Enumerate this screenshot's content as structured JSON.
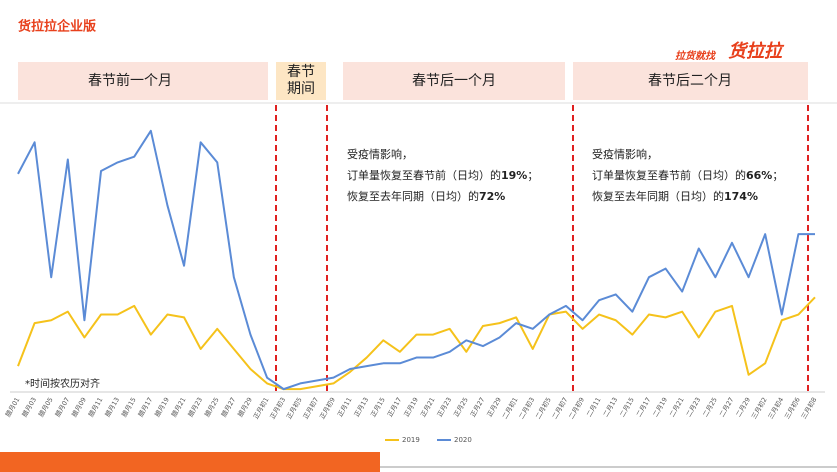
{
  "header": {
    "title": "货拉拉企业版",
    "logo_small": "拉货就找",
    "logo_big": "货拉拉"
  },
  "sections": [
    "春节前一个月",
    "春节期间",
    "春节后一个月",
    "春节后二个月"
  ],
  "annotations": [
    [
      "受疫情影响，",
      [
        "订单量恢复至春节前（日均）的",
        "19%",
        "；"
      ],
      [
        "恢复至去年同期（日均）的",
        "72%",
        ""
      ]
    ],
    [
      "受疫情影响，",
      [
        "订单量恢复至春节前（日均）的",
        "66%",
        "；"
      ],
      [
        "恢复至去年同期（日均）的",
        "174%",
        ""
      ]
    ]
  ],
  "note": "*时间按农历对齐",
  "chart_data": {
    "type": "line",
    "categories": [
      "腊月01",
      "腊月03",
      "腊月05",
      "腊月07",
      "腊月09",
      "腊月11",
      "腊月13",
      "腊月15",
      "腊月17",
      "腊月19",
      "腊月21",
      "腊月23",
      "腊月25",
      "腊月27",
      "腊月29",
      "正月初1",
      "正月初3",
      "正月初5",
      "正月初7",
      "正月初9",
      "正月11",
      "正月13",
      "正月15",
      "正月17",
      "正月19",
      "正月21",
      "正月23",
      "正月25",
      "正月27",
      "正月29",
      "二月初1",
      "二月初3",
      "二月初5",
      "二月初7",
      "二月初9",
      "二月11",
      "二月13",
      "二月15",
      "二月17",
      "二月19",
      "二月21",
      "二月23",
      "二月25",
      "二月27",
      "二月29",
      "三月初2",
      "三月初4",
      "三月初6",
      "三月初8"
    ],
    "ylim": [
      0,
      100
    ],
    "series": [
      {
        "name": "2019",
        "color": "#f5c21b",
        "values": [
          9,
          24,
          25,
          28,
          19,
          27,
          27,
          30,
          20,
          27,
          26,
          15,
          22,
          15,
          8,
          3,
          1,
          1,
          2,
          3,
          7,
          12,
          18,
          14,
          20,
          20,
          22,
          14,
          23,
          24,
          26,
          15,
          27,
          28,
          22,
          27,
          25,
          20,
          27,
          26,
          28,
          19,
          28,
          30,
          6,
          10,
          25,
          27,
          33
        ]
      },
      {
        "name": "2020",
        "color": "#5b8bd6",
        "values": [
          76,
          87,
          40,
          81,
          25,
          77,
          80,
          82,
          91,
          65,
          44,
          87,
          80,
          40,
          20,
          5,
          1,
          3,
          4,
          5,
          8,
          9,
          10,
          10,
          12,
          12,
          14,
          18,
          16,
          19,
          24,
          22,
          27,
          30,
          25,
          32,
          34,
          28,
          40,
          43,
          35,
          50,
          40,
          52,
          40,
          55,
          27,
          55,
          55
        ]
      }
    ],
    "legend": "bottom"
  }
}
